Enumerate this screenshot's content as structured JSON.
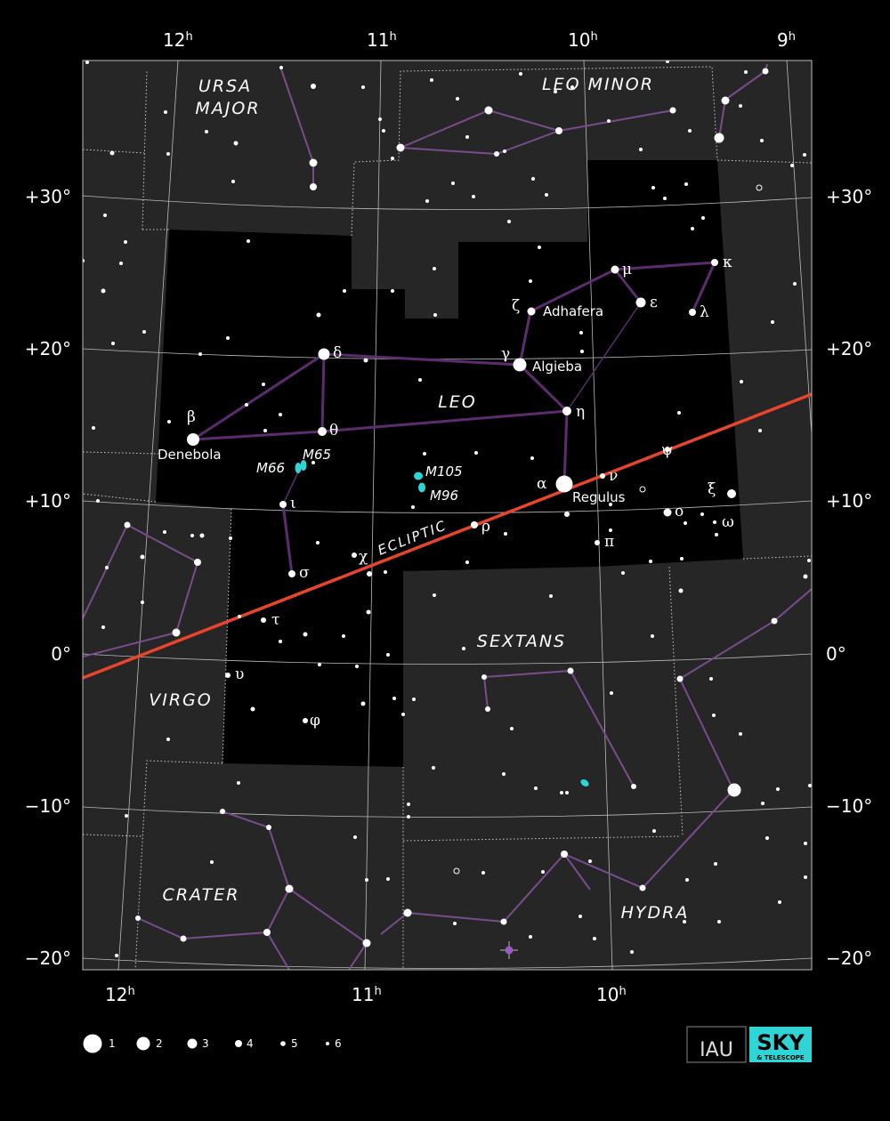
{
  "map": {
    "ra_labels_top": [
      {
        "h": "12",
        "sup": "h"
      },
      {
        "h": "11",
        "sup": "h"
      },
      {
        "h": "10",
        "sup": "h"
      },
      {
        "h": "9",
        "sup": "h"
      }
    ],
    "ra_labels_bottom": [
      {
        "h": "12",
        "sup": "h"
      },
      {
        "h": "11",
        "sup": "h"
      },
      {
        "h": "10",
        "sup": "h"
      }
    ],
    "dec_labels_left": [
      "+30°",
      "+20°",
      "+10°",
      "0°",
      "−10°",
      "−20°"
    ],
    "dec_labels_right": [
      "+30°",
      "+20°",
      "+10°",
      "0°",
      "−10°",
      "−20°"
    ],
    "constellations": [
      "URSA",
      "MAJOR",
      "LEO MINOR",
      "LEO",
      "SEXTANS",
      "VIRGO",
      "CRATER",
      "HYDRA"
    ],
    "star_names": [
      "Adhafera",
      "Algieba",
      "Denebola",
      "Regulus"
    ],
    "greek_letters": [
      "ζ",
      "γ",
      "δ",
      "β",
      "θ",
      "η",
      "α",
      "ν",
      "ψ",
      "μ",
      "κ",
      "ε",
      "λ",
      "ι",
      "σ",
      "χ",
      "ρ",
      "π",
      "ο",
      "ξ",
      "ω",
      "τ",
      "υ",
      "φ"
    ],
    "messier": [
      "M66",
      "M65",
      "M105",
      "M96"
    ],
    "ecliptic_label": "ECLIPTIC",
    "colors": {
      "background": "#000000",
      "outside_region": "#262626",
      "constellation_line": "#7b4b8f",
      "leo_line": "#5c2c6f",
      "ecliptic": "#e8452c",
      "messier": "#2fd4d4",
      "grid": "#bbbbbb"
    }
  },
  "legend": {
    "magnitudes": [
      "1",
      "2",
      "3",
      "4",
      "5",
      "6"
    ]
  },
  "logos": {
    "iau": "IAU",
    "sky": "SKY",
    "sky_sub": "& TELESCOPE"
  }
}
